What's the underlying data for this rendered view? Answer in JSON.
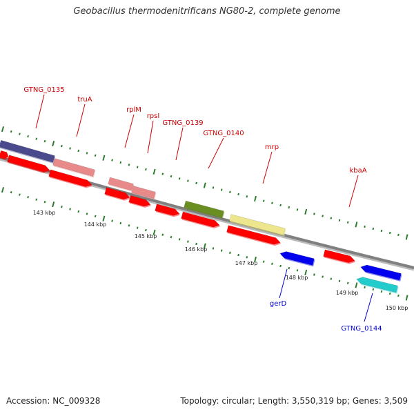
{
  "title": "Geobacillus thermodenitrificans NG80-2, complete genome",
  "accession": "Accession: NC_009328",
  "topology": "Topology: circular; Length: 3,550,319 bp; Genes: 3,509",
  "colors": {
    "backbone": "#808080",
    "tick": "#2e7d2e",
    "gene_label_red": "#cc0000",
    "gene_label_blue": "#0000cc",
    "cds_red": "#ff0000",
    "cds_pink": "#e88a8a",
    "cds_purple": "#4a4a8c",
    "cds_olive": "#6b8e23",
    "cds_khaki": "#eee68c",
    "cds_blue": "#0000ee",
    "cds_cyan": "#22cccc"
  },
  "kbp_labels": [
    "143 kbp",
    "144 kbp",
    "145 kbp",
    "146 kbp",
    "147 kbp",
    "148 kbp",
    "149 kbp",
    "150 kbp"
  ],
  "gene_labels": [
    {
      "text": "GTNG_0135",
      "color": "red"
    },
    {
      "text": "truA",
      "color": "red"
    },
    {
      "text": "rplM",
      "color": "red"
    },
    {
      "text": "rpsI",
      "color": "red"
    },
    {
      "text": "GTNG_0139",
      "color": "red"
    },
    {
      "text": "GTNG_0140",
      "color": "red"
    },
    {
      "text": "mrp",
      "color": "red"
    },
    {
      "text": "kbaA",
      "color": "red"
    },
    {
      "text": "gerD",
      "color": "blue"
    },
    {
      "text": "GTNG_0144",
      "color": "blue"
    }
  ]
}
